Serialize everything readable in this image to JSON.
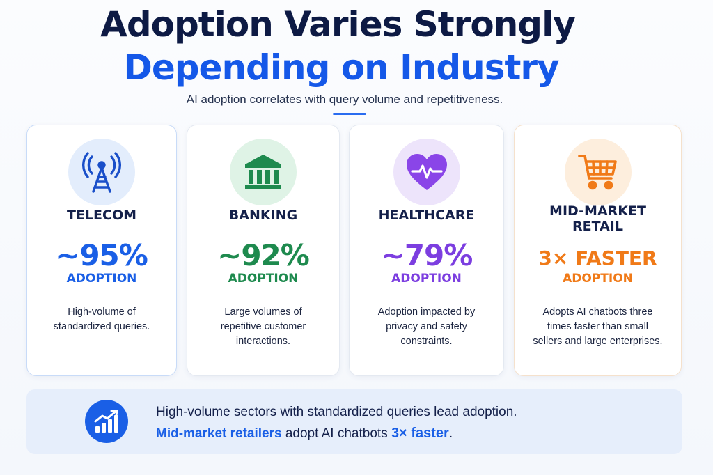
{
  "header": {
    "title_line1": "Adoption Varies Strongly",
    "title_line2": "Depending on Industry",
    "subtitle": "AI adoption correlates with query volume and repetitiveness."
  },
  "cards": [
    {
      "industry": "TELECOM",
      "stat": "~95%",
      "stat_label": "ADOPTION",
      "description": "High-volume of standardized queries.",
      "icon": "cell-tower-icon",
      "accent": "#1a5fe6"
    },
    {
      "industry": "BANKING",
      "stat": "~92%",
      "stat_label": "ADOPTION",
      "description": "Large volumes of repetitive customer interactions.",
      "icon": "bank-icon",
      "accent": "#1e8a4e"
    },
    {
      "industry": "HEALTHCARE",
      "stat": "~79%",
      "stat_label": "ADOPTION",
      "description": "Adoption impacted by privacy and safety constraints.",
      "icon": "heart-pulse-icon",
      "accent": "#7c3ee0"
    },
    {
      "industry_line1": "MID-MARKET",
      "industry_line2": "RETAIL",
      "stat": "3× FASTER",
      "stat_label": "ADOPTION",
      "description": "Adopts AI chatbots three times faster than small sellers and large enterprises.",
      "icon": "shopping-cart-icon",
      "accent": "#f07a18"
    }
  ],
  "banner": {
    "line1": "High-volume sectors with standardized queries lead adoption.",
    "line2_highlight": "Mid-market retailers",
    "line2_mid": " adopt AI chatbots ",
    "line2_stat": "3× faster",
    "line2_end": ".",
    "icon": "growth-chart-icon"
  }
}
